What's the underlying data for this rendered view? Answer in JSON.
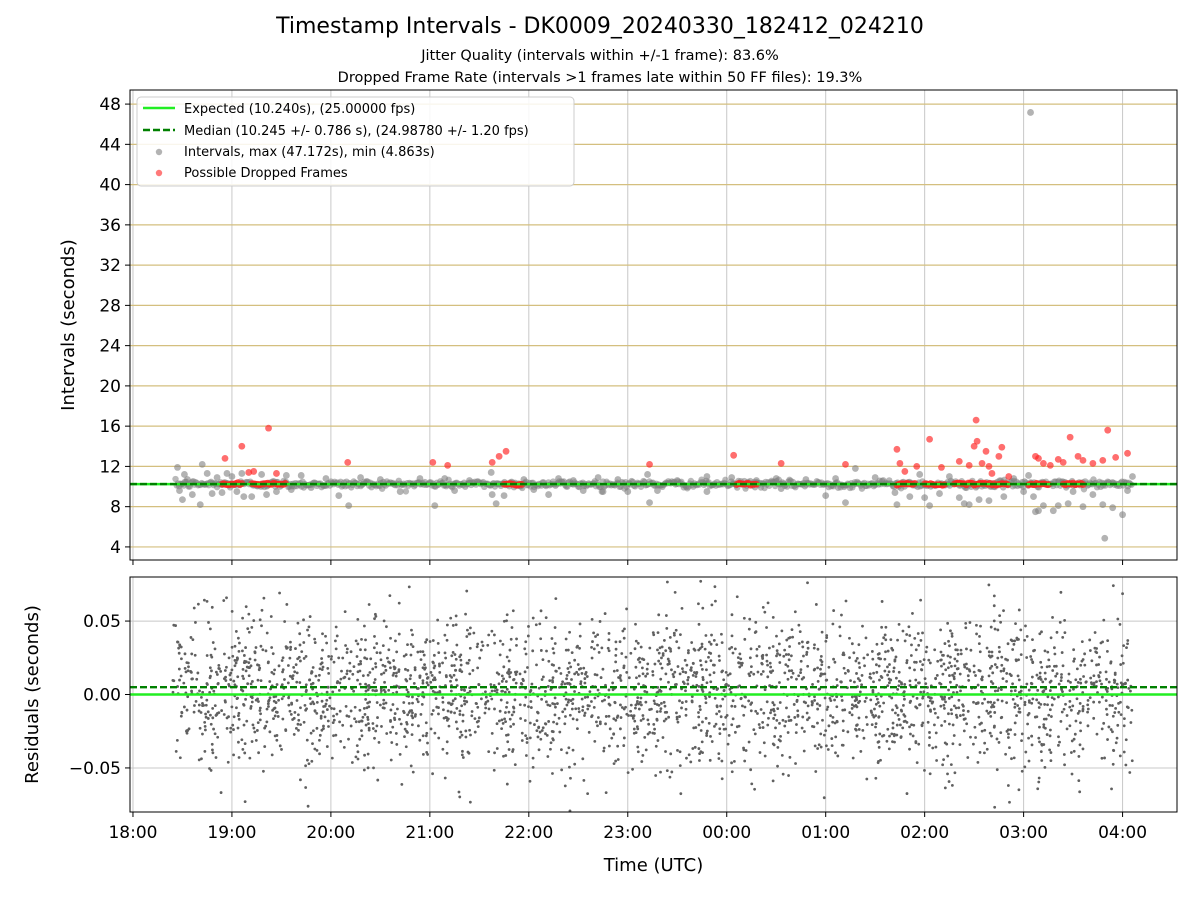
{
  "figure": {
    "title": "Timestamp Intervals - DK0009_20240330_182412_024210",
    "subtitle_1": "Jitter Quality (intervals within +/-1 frame): 83.6%",
    "subtitle_2": "Dropped Frame Rate (intervals >1 frames late within 50 FF files): 19.3%"
  },
  "colors": {
    "expected": "#22ee22",
    "median": "#008000",
    "intervals": "#808080",
    "dropped": "#ff2020",
    "grid_horizontal": "#d4bf7f",
    "grid_vertical": "#c8c8c8",
    "residuals": "#606060"
  },
  "chart_data": [
    {
      "type": "scatter",
      "ylabel": "Intervals (seconds)",
      "yticks": [
        "4",
        "8",
        "12",
        "16",
        "20",
        "24",
        "28",
        "32",
        "36",
        "40",
        "44",
        "48"
      ],
      "xticks": [
        "18:00",
        "19:00",
        "20:00",
        "21:00",
        "22:00",
        "23:00",
        "00:00",
        "01:00",
        "02:00",
        "03:00",
        "04:00"
      ],
      "x_range_hours": [
        17.97,
        28.55
      ],
      "ylim": [
        2.7,
        49.4
      ],
      "expected": 10.24,
      "median": 10.245,
      "legend": {
        "position": "upper-left",
        "entries": [
          "Expected (10.240s), (25.00000 fps)",
          "Median (10.245 +/- 0.786 s), (24.98780 +/- 1.20 fps)",
          "Intervals, max (47.172s), min (4.863s)",
          "Possible Dropped Frames"
        ]
      },
      "series": [
        {
          "name": "Intervals, max (47.172s), min (4.863s)",
          "points": [
            [
              18.45,
              11.9
            ],
            [
              18.47,
              9.6
            ],
            [
              18.5,
              8.7
            ],
            [
              18.52,
              11.2
            ],
            [
              18.55,
              10.7
            ],
            [
              18.6,
              9.2
            ],
            [
              18.68,
              8.2
            ],
            [
              18.7,
              12.2
            ],
            [
              18.75,
              11.3
            ],
            [
              18.8,
              9.3
            ],
            [
              18.85,
              10.9
            ],
            [
              18.9,
              9.4
            ],
            [
              18.95,
              11.3
            ],
            [
              19.0,
              11.0
            ],
            [
              19.05,
              9.5
            ],
            [
              19.1,
              11.3
            ],
            [
              19.12,
              9.0
            ],
            [
              19.2,
              9.0
            ],
            [
              19.3,
              11.2
            ],
            [
              19.35,
              9.2
            ],
            [
              19.45,
              9.5
            ],
            [
              19.55,
              11.1
            ],
            [
              19.6,
              9.7
            ],
            [
              19.7,
              11.1
            ],
            [
              19.8,
              9.9
            ],
            [
              19.95,
              10.8
            ],
            [
              20.08,
              9.1
            ],
            [
              20.18,
              8.1
            ],
            [
              20.3,
              10.9
            ],
            [
              20.5,
              10.7
            ],
            [
              20.7,
              9.5
            ],
            [
              20.9,
              10.8
            ],
            [
              21.05,
              8.1
            ],
            [
              21.15,
              10.8
            ],
            [
              21.25,
              9.6
            ],
            [
              21.4,
              10.6
            ],
            [
              21.62,
              11.4
            ],
            [
              21.63,
              9.2
            ],
            [
              21.67,
              8.3
            ],
            [
              21.75,
              9.1
            ],
            [
              21.95,
              10.7
            ],
            [
              22.05,
              9.7
            ],
            [
              22.2,
              9.2
            ],
            [
              22.3,
              10.8
            ],
            [
              22.45,
              10.6
            ],
            [
              22.55,
              9.6
            ],
            [
              22.7,
              10.9
            ],
            [
              22.75,
              9.5
            ],
            [
              22.9,
              10.7
            ],
            [
              23.0,
              9.5
            ],
            [
              23.2,
              11.2
            ],
            [
              23.22,
              8.4
            ],
            [
              23.3,
              9.6
            ],
            [
              23.5,
              10.6
            ],
            [
              23.8,
              11.0
            ],
            [
              23.8,
              9.5
            ],
            [
              24.05,
              10.9
            ],
            [
              24.3,
              10.6
            ],
            [
              24.5,
              10.8
            ],
            [
              24.55,
              9.8
            ],
            [
              24.8,
              10.7
            ],
            [
              25.0,
              9.1
            ],
            [
              25.1,
              10.8
            ],
            [
              25.2,
              8.4
            ],
            [
              25.3,
              11.8
            ],
            [
              25.5,
              10.9
            ],
            [
              25.7,
              9.4
            ],
            [
              25.72,
              8.2
            ],
            [
              25.85,
              9.0
            ],
            [
              25.95,
              11.2
            ],
            [
              26.0,
              8.9
            ],
            [
              26.05,
              8.1
            ],
            [
              26.15,
              9.3
            ],
            [
              26.25,
              11.0
            ],
            [
              26.35,
              8.9
            ],
            [
              26.4,
              8.3
            ],
            [
              26.45,
              8.2
            ],
            [
              26.55,
              8.7
            ],
            [
              26.65,
              8.6
            ],
            [
              26.8,
              9.0
            ],
            [
              26.9,
              10.8
            ],
            [
              27.0,
              9.5
            ],
            [
              27.05,
              11.1
            ],
            [
              27.1,
              9.0
            ],
            [
              27.12,
              7.5
            ],
            [
              27.15,
              7.6
            ],
            [
              27.2,
              8.1
            ],
            [
              27.3,
              7.6
            ],
            [
              27.35,
              8.1
            ],
            [
              27.45,
              8.3
            ],
            [
              27.5,
              9.5
            ],
            [
              27.6,
              8.0
            ],
            [
              27.7,
              9.2
            ],
            [
              27.8,
              8.2
            ],
            [
              27.82,
              4.86
            ],
            [
              27.9,
              7.9
            ],
            [
              28.0,
              7.2
            ],
            [
              28.05,
              9.6
            ],
            [
              28.1,
              11.0
            ],
            [
              27.07,
              47.17
            ]
          ]
        },
        {
          "name": "Possible Dropped Frames",
          "points": [
            [
              18.93,
              12.8
            ],
            [
              19.1,
              14.0
            ],
            [
              19.17,
              11.4
            ],
            [
              19.22,
              11.5
            ],
            [
              19.37,
              15.8
            ],
            [
              19.45,
              11.3
            ],
            [
              20.17,
              12.4
            ],
            [
              21.03,
              12.4
            ],
            [
              21.18,
              12.1
            ],
            [
              21.63,
              12.4
            ],
            [
              21.7,
              13.0
            ],
            [
              21.77,
              13.5
            ],
            [
              23.22,
              12.2
            ],
            [
              24.07,
              13.1
            ],
            [
              24.55,
              12.3
            ],
            [
              25.2,
              12.2
            ],
            [
              25.72,
              13.7
            ],
            [
              25.75,
              12.3
            ],
            [
              25.8,
              11.5
            ],
            [
              25.92,
              12.0
            ],
            [
              26.05,
              14.7
            ],
            [
              26.17,
              11.9
            ],
            [
              26.35,
              12.5
            ],
            [
              26.45,
              12.1
            ],
            [
              26.5,
              14.0
            ],
            [
              26.52,
              16.6
            ],
            [
              26.53,
              14.5
            ],
            [
              26.58,
              12.3
            ],
            [
              26.62,
              13.5
            ],
            [
              26.65,
              12.0
            ],
            [
              26.68,
              11.3
            ],
            [
              26.75,
              13.0
            ],
            [
              26.78,
              13.9
            ],
            [
              26.85,
              11.0
            ],
            [
              27.12,
              13.0
            ],
            [
              27.15,
              12.8
            ],
            [
              27.2,
              12.3
            ],
            [
              27.27,
              12.1
            ],
            [
              27.35,
              12.7
            ],
            [
              27.4,
              12.4
            ],
            [
              27.47,
              14.9
            ],
            [
              27.55,
              13.0
            ],
            [
              27.6,
              12.6
            ],
            [
              27.7,
              12.3
            ],
            [
              27.8,
              12.6
            ],
            [
              27.85,
              15.6
            ],
            [
              27.93,
              12.9
            ],
            [
              28.05,
              13.3
            ]
          ],
          "clusters_at_baseline": [
            [
              18.9,
              19.1
            ],
            [
              19.2,
              19.55
            ],
            [
              21.75,
              21.93
            ],
            [
              24.1,
              24.3
            ],
            [
              25.72,
              25.9
            ],
            [
              26.0,
              26.2
            ],
            [
              26.3,
              26.85
            ],
            [
              27.05,
              27.25
            ],
            [
              27.4,
              27.6
            ]
          ]
        }
      ]
    },
    {
      "type": "scatter",
      "ylabel": "Residuals (seconds)",
      "xlabel": "Time (UTC)",
      "yticks": [
        "−0.05",
        "0.00",
        "0.05"
      ],
      "ylim": [
        -0.08,
        0.08
      ],
      "expected_residual": 0.0,
      "median_residual": 0.005,
      "point_spread_std": 0.026,
      "x_span_hours": [
        18.4,
        28.1
      ]
    }
  ]
}
